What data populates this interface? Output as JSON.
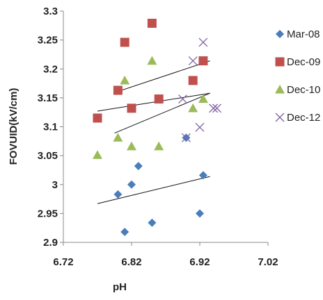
{
  "chart_data": {
    "type": "scatter",
    "title": "",
    "xlabel": "pH",
    "ylabel": "FOVUID(kV/cm)",
    "xlim": [
      6.72,
      7.02
    ],
    "ylim": [
      2.9,
      3.3
    ],
    "x_ticks": [
      "6.72",
      "6.82",
      "6.92",
      "7.02"
    ],
    "y_ticks": [
      "2.9",
      "2.95",
      "3",
      "3.05",
      "3.1",
      "3.15",
      "3.2",
      "3.25",
      "3.3"
    ],
    "x_tick_values": [
      6.72,
      6.82,
      6.92,
      7.02
    ],
    "y_tick_values": [
      2.9,
      2.95,
      3.0,
      3.05,
      3.1,
      3.15,
      3.2,
      3.25,
      3.3
    ],
    "grid": false,
    "legend_position": "right",
    "series": [
      {
        "name": "Mar-08",
        "marker": "diamond",
        "color": "#4a7ebb",
        "points": [
          {
            "x": 6.8,
            "y": 2.983
          },
          {
            "x": 6.81,
            "y": 2.918
          },
          {
            "x": 6.82,
            "y": 3.0
          },
          {
            "x": 6.83,
            "y": 3.032
          },
          {
            "x": 6.85,
            "y": 2.934
          },
          {
            "x": 6.9,
            "y": 3.081
          },
          {
            "x": 6.92,
            "y": 2.95
          },
          {
            "x": 6.925,
            "y": 3.016
          }
        ],
        "trendline": {
          "x": [
            6.77,
            6.935
          ],
          "y": [
            2.967,
            3.014
          ]
        }
      },
      {
        "name": "Dec-09",
        "marker": "square",
        "color": "#c0504d",
        "points": [
          {
            "x": 6.77,
            "y": 3.115
          },
          {
            "x": 6.8,
            "y": 3.163
          },
          {
            "x": 6.81,
            "y": 3.246
          },
          {
            "x": 6.82,
            "y": 3.132
          },
          {
            "x": 6.85,
            "y": 3.279
          },
          {
            "x": 6.86,
            "y": 3.148
          },
          {
            "x": 6.91,
            "y": 3.18
          },
          {
            "x": 6.925,
            "y": 3.214
          }
        ],
        "trendline": {
          "x": [
            6.77,
            6.935
          ],
          "y": [
            3.127,
            3.158
          ]
        }
      },
      {
        "name": "Dec-10",
        "marker": "triangle",
        "color": "#9bbb59",
        "points": [
          {
            "x": 6.77,
            "y": 3.051
          },
          {
            "x": 6.8,
            "y": 3.081
          },
          {
            "x": 6.81,
            "y": 3.18
          },
          {
            "x": 6.82,
            "y": 3.066
          },
          {
            "x": 6.85,
            "y": 3.214
          },
          {
            "x": 6.86,
            "y": 3.066
          },
          {
            "x": 6.91,
            "y": 3.132
          },
          {
            "x": 6.925,
            "y": 3.148
          }
        ],
        "trendline": {
          "x": [
            6.795,
            6.935
          ],
          "y": [
            3.089,
            3.158
          ]
        }
      },
      {
        "name": "Dec-12",
        "marker": "x",
        "color": "#8064a2",
        "points": [
          {
            "x": 6.895,
            "y": 3.148
          },
          {
            "x": 6.9,
            "y": 3.081
          },
          {
            "x": 6.91,
            "y": 3.214
          },
          {
            "x": 6.92,
            "y": 3.099
          },
          {
            "x": 6.925,
            "y": 3.246
          },
          {
            "x": 6.94,
            "y": 3.132
          },
          {
            "x": 6.945,
            "y": 3.132
          }
        ],
        "trendline": {
          "x": [
            6.8,
            6.935
          ],
          "y": [
            3.161,
            3.214
          ]
        }
      }
    ]
  }
}
